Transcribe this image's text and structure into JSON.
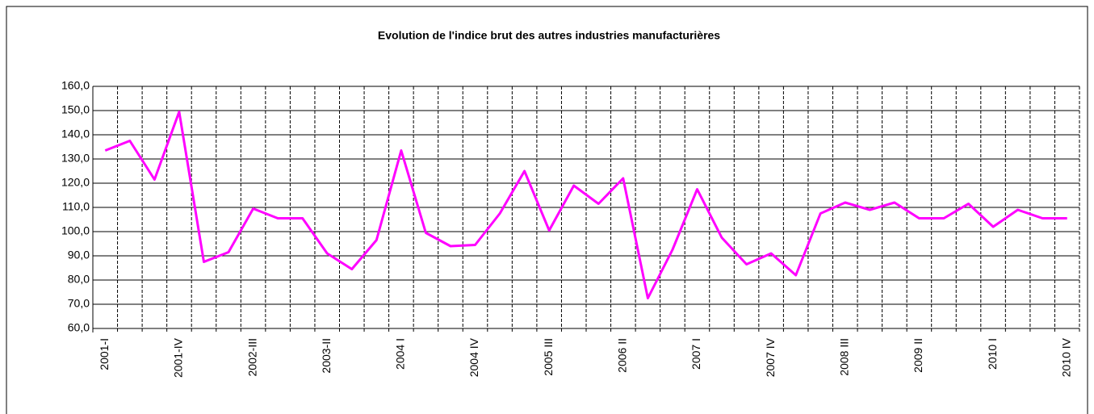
{
  "chart_data": {
    "type": "line",
    "title": "Evolution de l'indice brut des autres industries manufacturières",
    "categories": [
      "2001-I",
      null,
      null,
      "2001-IV",
      null,
      null,
      "2002-III",
      null,
      null,
      "2003-II",
      null,
      null,
      "2004 I",
      null,
      null,
      "2004 IV",
      null,
      null,
      "2005 III",
      null,
      null,
      "2006 II",
      null,
      null,
      "2007 I",
      null,
      null,
      "2007 IV",
      null,
      null,
      "2008 III",
      null,
      null,
      "2009 II",
      null,
      null,
      "2010 I",
      null,
      null,
      "2010 IV"
    ],
    "series": [
      {
        "name": "Indice brut",
        "color": "#ff00ff",
        "values": [
          133.5,
          137.5,
          121.5,
          149.5,
          87.5,
          91.5,
          109.5,
          105.5,
          105.5,
          91,
          84.5,
          96.5,
          133.5,
          99.5,
          94,
          94.5,
          107.5,
          125,
          100.5,
          119,
          111.5,
          122,
          72.5,
          92.5,
          117.5,
          97.5,
          86.5,
          91,
          82,
          107.5,
          112,
          109,
          112,
          105.5,
          105.5,
          111.5,
          102,
          109,
          105.5,
          105.5
        ]
      }
    ],
    "ylim": [
      60,
      160
    ],
    "yticks": [
      {
        "value": 60,
        "label": "60,0"
      },
      {
        "value": 70,
        "label": "70,0"
      },
      {
        "value": 80,
        "label": "80,0"
      },
      {
        "value": 90,
        "label": "90,0"
      },
      {
        "value": 100,
        "label": "100,0"
      },
      {
        "value": 110,
        "label": "110,0"
      },
      {
        "value": 120,
        "label": "120,0"
      },
      {
        "value": 130,
        "label": "130,0"
      },
      {
        "value": 140,
        "label": "140,0"
      },
      {
        "value": 150,
        "label": "150,0"
      },
      {
        "value": 160,
        "label": "160,0"
      }
    ],
    "grid": true
  }
}
